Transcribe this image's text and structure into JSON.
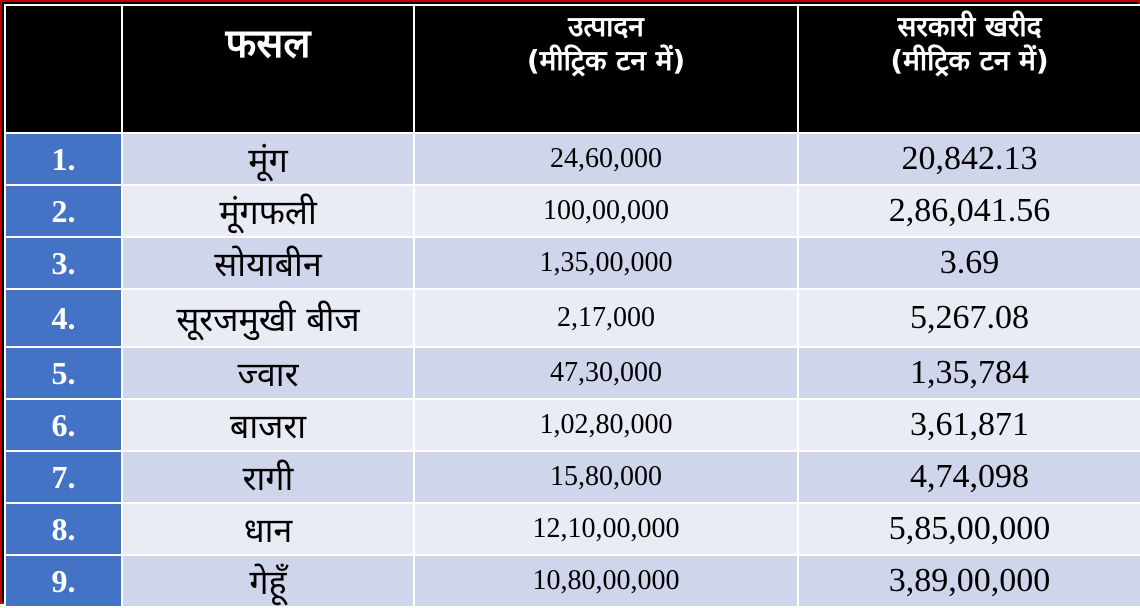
{
  "headers": {
    "crop": "फसल",
    "production_line1": "उत्पादन",
    "production_line2": "(मीट्रिक टन में)",
    "procurement_line1": "सरकारी खरीद",
    "procurement_line2": "(मीट्रिक टन में)"
  },
  "rows": [
    {
      "num": "1.",
      "crop": "मूंग",
      "production": "24,60,000",
      "procurement": "20,842.13"
    },
    {
      "num": "2.",
      "crop": "मूंगफली",
      "production": "100,00,000",
      "procurement": "2,86,041.56"
    },
    {
      "num": "3.",
      "crop": "सोयाबीन",
      "production": "1,35,00,000",
      "procurement": "3.69"
    },
    {
      "num": "4.",
      "crop": "सूरजमुखी बीज",
      "production": "2,17,000",
      "procurement": "5,267.08"
    },
    {
      "num": "5.",
      "crop": "ज्वार",
      "production": "47,30,000",
      "procurement": "1,35,784"
    },
    {
      "num": "6.",
      "crop": "बाजरा",
      "production": "1,02,80,000",
      "procurement": "3,61,871"
    },
    {
      "num": "7.",
      "crop": "रागी",
      "production": "15,80,000",
      "procurement": "4,74,098"
    },
    {
      "num": "8.",
      "crop": "धान",
      "production": "12,10,00,000",
      "procurement": "5,85,00,000"
    },
    {
      "num": "9.",
      "crop": "गेहूँ",
      "production": "10,80,00,000",
      "procurement": "3,89,00,000"
    }
  ]
}
